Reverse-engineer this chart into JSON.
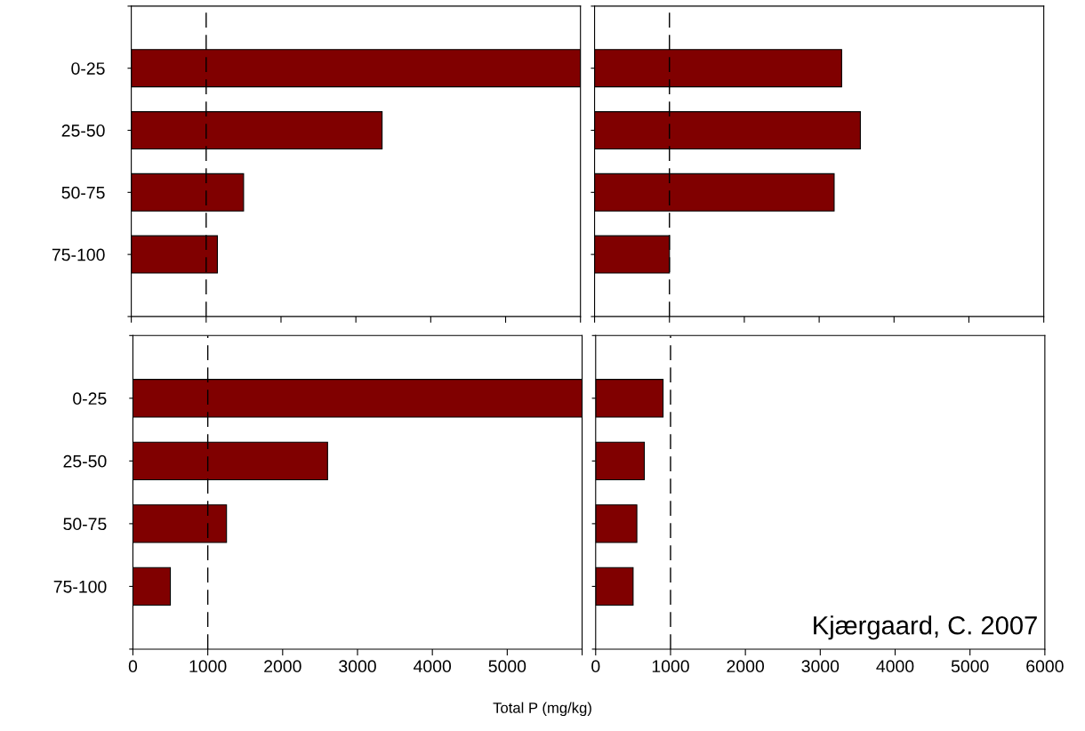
{
  "chart_data": [
    {
      "type": "bar",
      "orientation": "horizontal",
      "categories": [
        "0-25",
        "25-50",
        "50-75",
        "75-100"
      ],
      "values": [
        6000,
        3350,
        1500,
        1150
      ],
      "color": "#800000",
      "xlim": [
        0,
        6000
      ],
      "xticks": [
        0,
        1000,
        2000,
        3000,
        4000,
        5000,
        6000
      ],
      "tick_labels": "y",
      "grid": false,
      "ref_lines": [
        {
          "axis": "x",
          "value": 1000,
          "color": "#000000",
          "line_style": "dashed"
        }
      ]
    },
    {
      "type": "bar",
      "orientation": "horizontal",
      "categories": [
        null,
        null,
        null,
        null
      ],
      "values": [
        3300,
        3550,
        3200,
        1000
      ],
      "color": "#800000",
      "xlim": [
        0,
        6000
      ],
      "xticks": [
        0,
        1000,
        2000,
        3000,
        4000,
        5000,
        6000
      ],
      "tick_labels": false,
      "grid": false,
      "ref_lines": [
        {
          "axis": "x",
          "value": 1000,
          "color": "#000000",
          "line_style": "dashed"
        }
      ]
    },
    {
      "type": "bar",
      "orientation": "horizontal",
      "categories": [
        "0-25",
        "25-50",
        "50-75",
        "75-100"
      ],
      "values": [
        6000,
        2600,
        1250,
        500
      ],
      "color": "#800000",
      "xlim": [
        0,
        6000
      ],
      "xticks": [
        0,
        1000,
        2000,
        3000,
        4000,
        5000,
        {
          "value": 6000,
          "label": null
        }
      ],
      "grid": false,
      "xlabel": "Total P (mg/kg)",
      "ref_lines": [
        {
          "axis": "x",
          "value": 1000,
          "color": "#000000",
          "line_style": "dashed"
        }
      ]
    },
    {
      "type": "bar",
      "orientation": "horizontal",
      "categories": [
        null,
        null,
        null,
        null
      ],
      "values": [
        900,
        650,
        550,
        500
      ],
      "color": "#800000",
      "xlim": [
        0,
        6000
      ],
      "xticks": [
        0,
        1000,
        2000,
        3000,
        4000,
        5000,
        6000
      ],
      "tick_labels": "x",
      "grid": false,
      "annotations": [
        "Kjærgaard, C. 2007"
      ],
      "ref_lines": [
        {
          "axis": "x",
          "value": 1000,
          "color": "#000000",
          "line_style": "dashed"
        }
      ]
    }
  ]
}
